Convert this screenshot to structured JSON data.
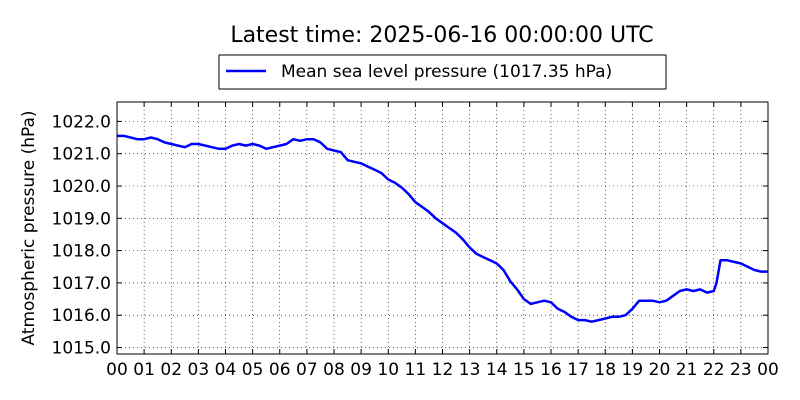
{
  "chart_data": {
    "type": "line",
    "title": "Latest time: 2025-06-16 00:00:00 UTC",
    "xlabel": "",
    "ylabel": "Atmospheric pressure (hPa)",
    "xlim": [
      0,
      24
    ],
    "ylim": [
      1014.8,
      1022.6
    ],
    "x_ticks": [
      {
        "value": 0,
        "label": "00"
      },
      {
        "value": 1,
        "label": "01"
      },
      {
        "value": 2,
        "label": "02"
      },
      {
        "value": 3,
        "label": "03"
      },
      {
        "value": 4,
        "label": "04"
      },
      {
        "value": 5,
        "label": "05"
      },
      {
        "value": 6,
        "label": "06"
      },
      {
        "value": 7,
        "label": "07"
      },
      {
        "value": 8,
        "label": "08"
      },
      {
        "value": 9,
        "label": "09"
      },
      {
        "value": 10,
        "label": "10"
      },
      {
        "value": 11,
        "label": "11"
      },
      {
        "value": 12,
        "label": "12"
      },
      {
        "value": 13,
        "label": "13"
      },
      {
        "value": 14,
        "label": "14"
      },
      {
        "value": 15,
        "label": "15"
      },
      {
        "value": 16,
        "label": "16"
      },
      {
        "value": 17,
        "label": "17"
      },
      {
        "value": 18,
        "label": "18"
      },
      {
        "value": 19,
        "label": "19"
      },
      {
        "value": 20,
        "label": "20"
      },
      {
        "value": 21,
        "label": "21"
      },
      {
        "value": 22,
        "label": "22"
      },
      {
        "value": 23,
        "label": "23"
      },
      {
        "value": 24,
        "label": "00"
      }
    ],
    "y_ticks": [
      {
        "value": 1015,
        "label": "1015.0"
      },
      {
        "value": 1016,
        "label": "1016.0"
      },
      {
        "value": 1017,
        "label": "1017.0"
      },
      {
        "value": 1018,
        "label": "1018.0"
      },
      {
        "value": 1019,
        "label": "1019.0"
      },
      {
        "value": 1020,
        "label": "1020.0"
      },
      {
        "value": 1021,
        "label": "1021.0"
      },
      {
        "value": 1022,
        "label": "1022.0"
      }
    ],
    "grid": true,
    "legend_position": "top-center",
    "series": [
      {
        "name": "Mean sea level pressure (1017.35 hPa)",
        "color": "#0000ff",
        "x": [
          0,
          0.25,
          0.5,
          0.75,
          1.0,
          1.25,
          1.5,
          1.75,
          2.0,
          2.25,
          2.5,
          2.75,
          3.0,
          3.25,
          3.5,
          3.75,
          4.0,
          4.25,
          4.5,
          4.75,
          5.0,
          5.25,
          5.5,
          5.75,
          6.0,
          6.25,
          6.5,
          6.75,
          7.0,
          7.25,
          7.5,
          7.75,
          8.0,
          8.25,
          8.5,
          8.75,
          9.0,
          9.25,
          9.5,
          9.75,
          10.0,
          10.25,
          10.5,
          10.75,
          11.0,
          11.25,
          11.5,
          11.75,
          12.0,
          12.25,
          12.5,
          12.75,
          13.0,
          13.25,
          13.5,
          13.75,
          14.0,
          14.25,
          14.5,
          14.75,
          15.0,
          15.25,
          15.5,
          15.75,
          16.0,
          16.25,
          16.5,
          16.75,
          17.0,
          17.25,
          17.5,
          17.75,
          18.0,
          18.25,
          18.5,
          18.75,
          19.0,
          19.25,
          19.5,
          19.75,
          20.0,
          20.25,
          20.5,
          20.75,
          21.0,
          21.25,
          21.5,
          21.75,
          22.0,
          22.1,
          22.25,
          22.5,
          22.75,
          23.0,
          23.25,
          23.5,
          23.75,
          24.0
        ],
        "y": [
          1021.55,
          1021.55,
          1021.5,
          1021.45,
          1021.45,
          1021.5,
          1021.45,
          1021.35,
          1021.3,
          1021.25,
          1021.2,
          1021.3,
          1021.3,
          1021.25,
          1021.2,
          1021.15,
          1021.15,
          1021.25,
          1021.3,
          1021.25,
          1021.3,
          1021.25,
          1021.15,
          1021.2,
          1021.25,
          1021.3,
          1021.45,
          1021.4,
          1021.45,
          1021.45,
          1021.35,
          1021.15,
          1021.1,
          1021.05,
          1020.8,
          1020.75,
          1020.7,
          1020.6,
          1020.5,
          1020.4,
          1020.2,
          1020.1,
          1019.95,
          1019.75,
          1019.5,
          1019.35,
          1019.2,
          1019.0,
          1018.85,
          1018.7,
          1018.55,
          1018.35,
          1018.1,
          1017.9,
          1017.8,
          1017.7,
          1017.6,
          1017.4,
          1017.05,
          1016.8,
          1016.5,
          1016.35,
          1016.4,
          1016.45,
          1016.4,
          1016.2,
          1016.1,
          1015.95,
          1015.85,
          1015.85,
          1015.8,
          1015.85,
          1015.9,
          1015.95,
          1015.95,
          1016.0,
          1016.2,
          1016.45,
          1016.45,
          1016.45,
          1016.4,
          1016.45,
          1016.6,
          1016.75,
          1016.8,
          1016.75,
          1016.8,
          1016.7,
          1016.75,
          1017.0,
          1017.7,
          1017.7,
          1017.65,
          1017.6,
          1017.5,
          1017.4,
          1017.35,
          1017.35
        ]
      }
    ]
  }
}
